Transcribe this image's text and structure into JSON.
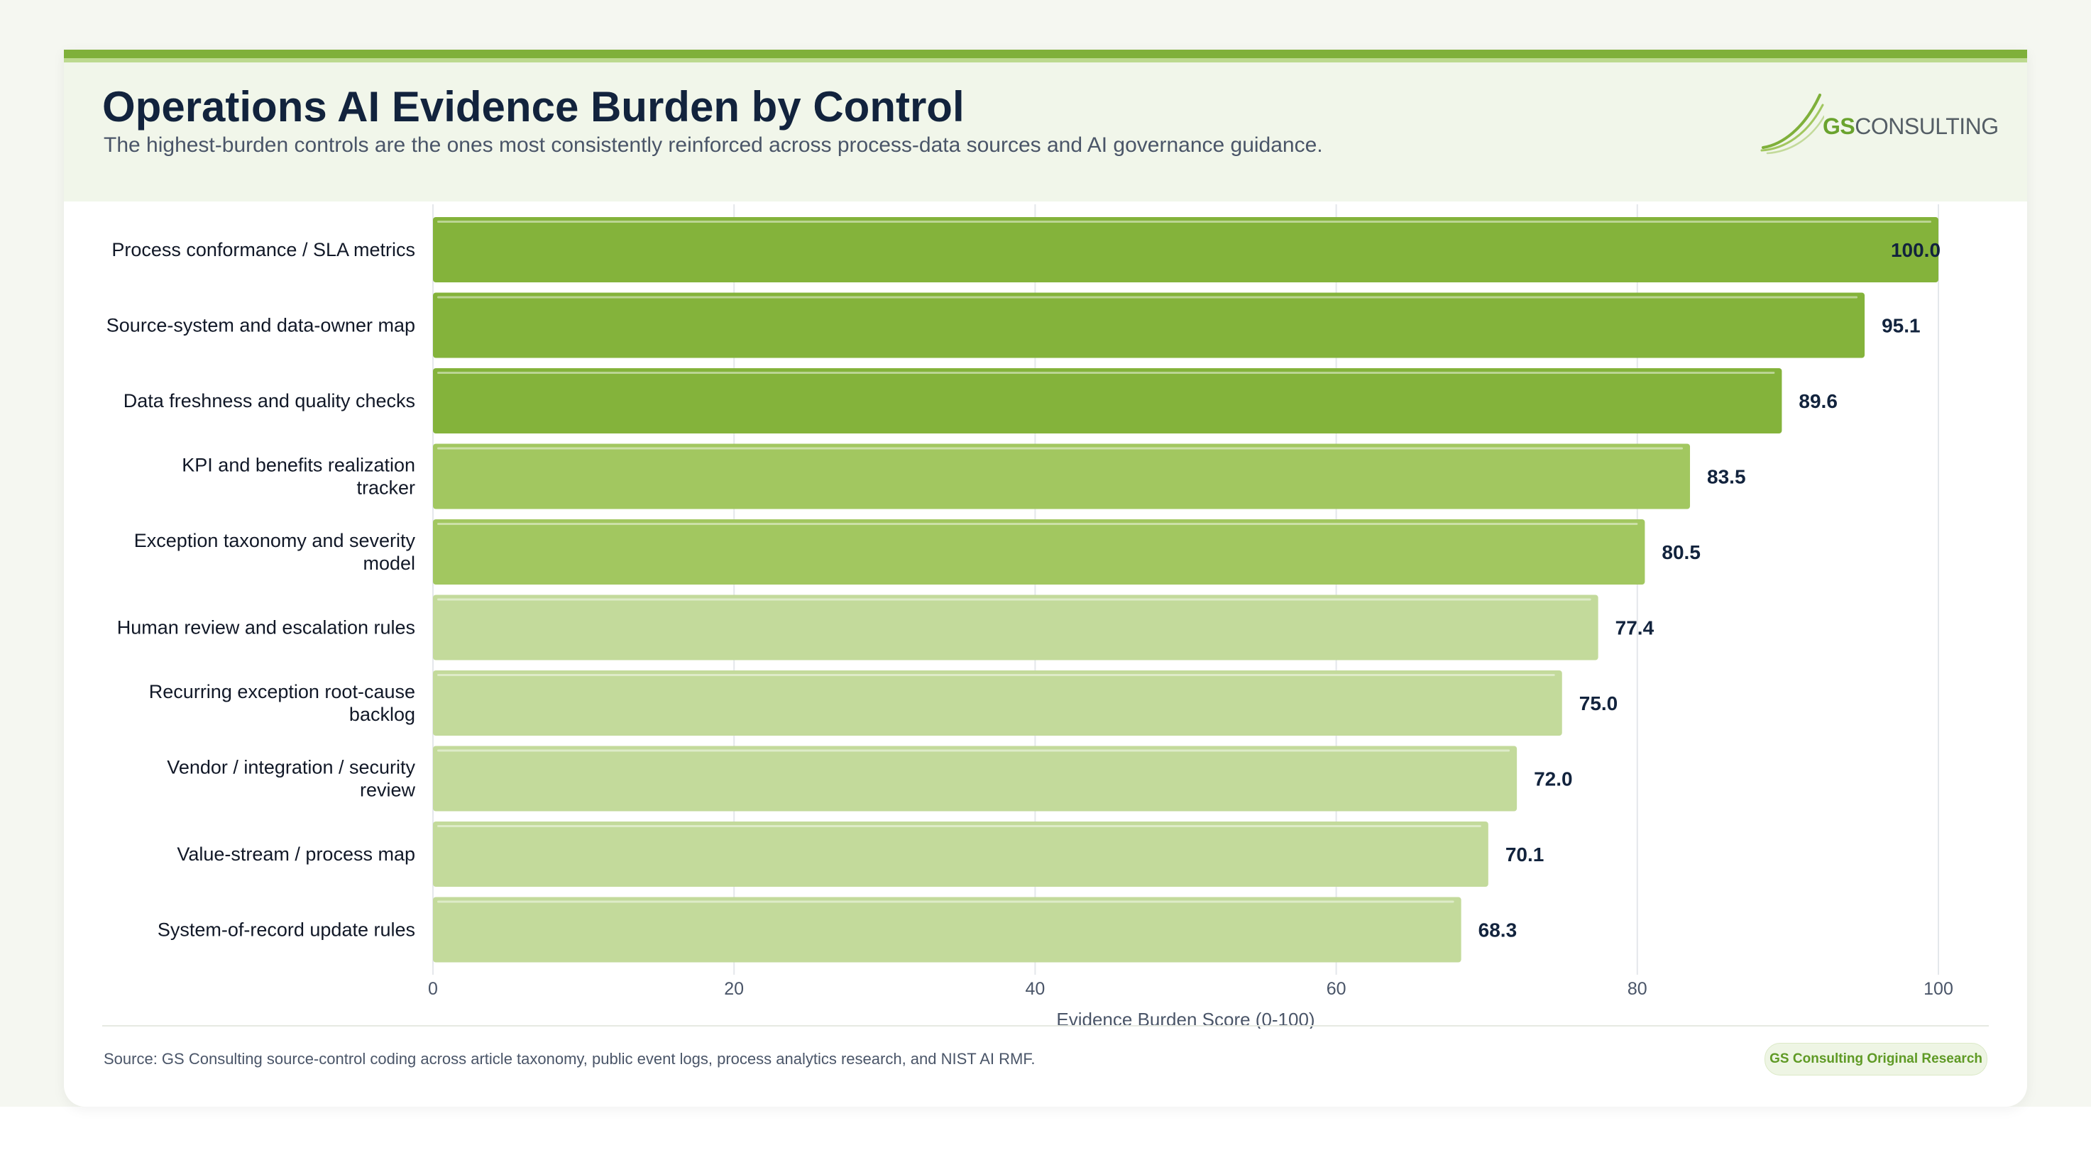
{
  "header": {
    "title": "Operations AI Evidence Burden by Control",
    "subtitle": "The highest-burden controls are the ones most consistently reinforced across process-data sources and AI governance guidance."
  },
  "logo": {
    "brand_primary": "GS",
    "brand_secondary": "CONSULTING"
  },
  "footer": {
    "source": "Source: GS Consulting source-control coding across article taxonomy, public event logs, process analytics research, and NIST AI RMF.",
    "badge": "GS Consulting Original Research"
  },
  "colors": {
    "accent_dark": "#7fb03a",
    "tier_high": "#84b33b",
    "tier_mid": "#a2c760",
    "tier_low": "#c3da9b",
    "title": "#12233d"
  },
  "chart_data": {
    "type": "bar",
    "orientation": "horizontal",
    "categories": [
      "Process conformance / SLA metrics",
      "Source-system and data-owner map",
      "Data freshness and quality checks",
      "KPI and benefits realization tracker",
      "Exception taxonomy and severity model",
      "Human review and escalation rules",
      "Recurring exception root-cause backlog",
      "Vendor / integration / security review",
      "Value-stream / process map",
      "System-of-record update rules"
    ],
    "values": [
      100.0,
      95.1,
      89.6,
      83.5,
      80.5,
      77.4,
      75.0,
      72.0,
      70.1,
      68.3
    ],
    "value_labels": [
      "100.0",
      "95.1",
      "89.6",
      "83.5",
      "80.5",
      "77.4",
      "75.0",
      "72.0",
      "70.1",
      "68.3"
    ],
    "tiers": [
      "high",
      "high",
      "high",
      "mid",
      "mid",
      "low",
      "low",
      "low",
      "low",
      "low"
    ],
    "xlabel": "Evidence Burden Score (0-100)",
    "ylabel": "",
    "xlim": [
      0,
      100
    ],
    "xticks": [
      0,
      20,
      40,
      60,
      80,
      100
    ],
    "grid": "vertical"
  }
}
